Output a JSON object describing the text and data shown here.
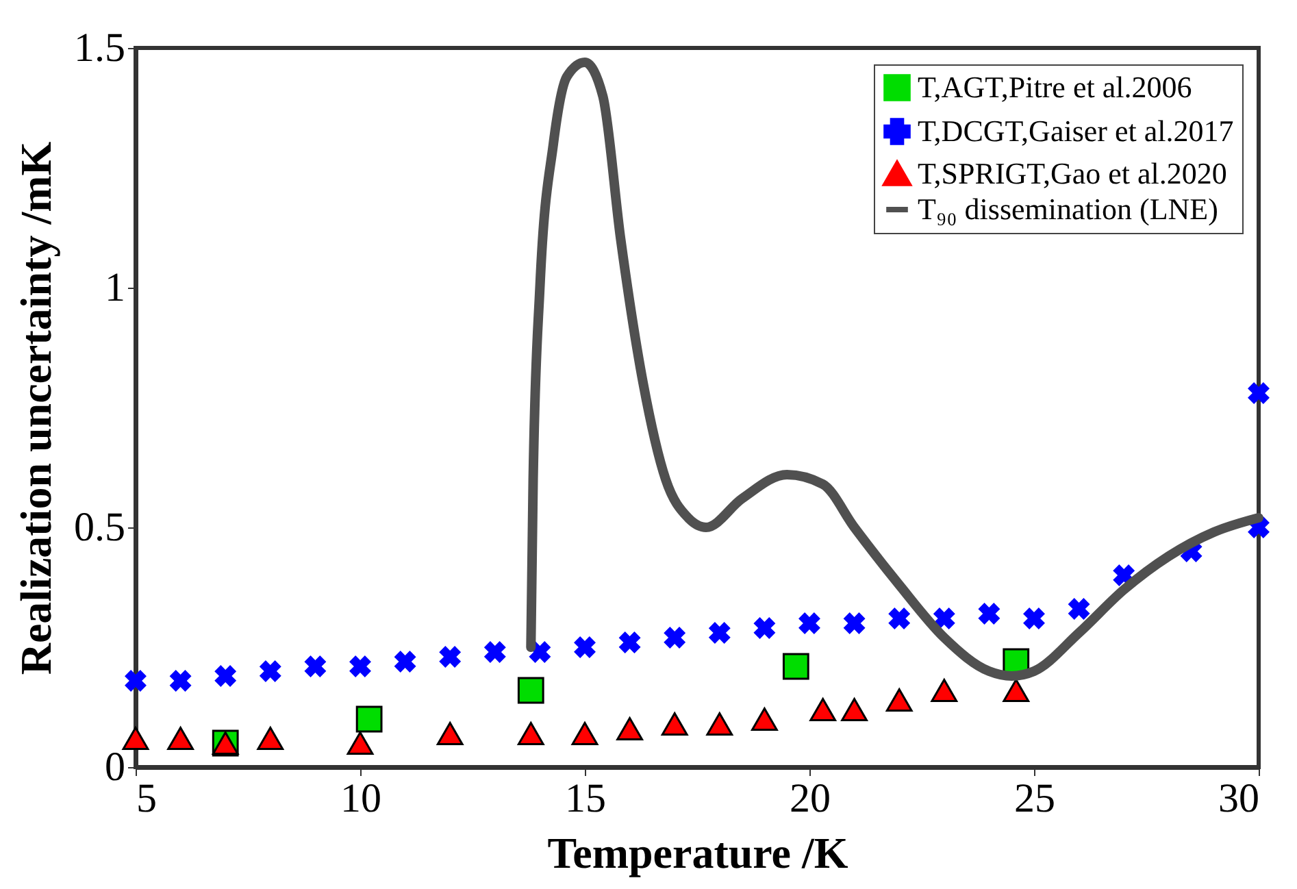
{
  "chart_data": {
    "type": "scatter",
    "xlabel": "Temperature /K",
    "ylabel": "Realization uncertainty /mK",
    "xlim": [
      5,
      30
    ],
    "ylim": [
      0,
      1.5
    ],
    "xticks": [
      5,
      10,
      15,
      20,
      25,
      30
    ],
    "yticks": [
      0,
      0.5,
      1,
      1.5
    ],
    "grid": false,
    "legend": "top right",
    "series": [
      {
        "name": "T,AGT,Pitre et al.2006",
        "marker": "square",
        "color": "#00dd00",
        "x": [
          7,
          10.2,
          13.8,
          19.7,
          24.6
        ],
        "values": [
          0.05,
          0.1,
          0.16,
          0.21,
          0.22
        ]
      },
      {
        "name": "T,DCGT,Gaiser et al.2017",
        "marker": "cross",
        "color": "#0000ff",
        "x": [
          5,
          6,
          7,
          8,
          9,
          10,
          11,
          12,
          13,
          14,
          15,
          16,
          17,
          18,
          19,
          20,
          21,
          22,
          23,
          24,
          25,
          26,
          27,
          28.5,
          30,
          30
        ],
        "values": [
          0.18,
          0.18,
          0.19,
          0.2,
          0.21,
          0.21,
          0.22,
          0.23,
          0.24,
          0.24,
          0.25,
          0.26,
          0.27,
          0.28,
          0.29,
          0.3,
          0.3,
          0.31,
          0.31,
          0.32,
          0.31,
          0.33,
          0.4,
          0.45,
          0.5,
          0.78
        ]
      },
      {
        "name": "T,SPRIGT,Gao et al.2020",
        "marker": "triangle",
        "color": "#ff0000",
        "x": [
          5,
          6,
          7,
          8,
          10,
          12,
          13.8,
          15,
          16,
          17,
          18,
          19,
          20.3,
          21,
          22,
          23,
          24.6
        ],
        "values": [
          0.06,
          0.06,
          0.05,
          0.06,
          0.05,
          0.07,
          0.07,
          0.07,
          0.08,
          0.09,
          0.09,
          0.1,
          0.12,
          0.12,
          0.14,
          0.16,
          0.16
        ]
      },
      {
        "name": "T₉₀ dissemination (LNE)",
        "type": "line",
        "marker": "none",
        "line_style": "solid",
        "color": "#505050",
        "x": [
          13.8,
          13.85,
          14.0,
          14.3,
          14.6,
          15,
          15.4,
          15.8,
          16.3,
          16.8,
          17.3,
          17.7,
          18.5,
          19.5,
          20.3,
          21,
          22,
          23,
          24,
          24.5,
          25,
          26,
          27,
          28,
          29,
          30
        ],
        "values": [
          0.25,
          0.6,
          1.0,
          1.3,
          1.44,
          1.47,
          1.4,
          1.1,
          0.8,
          0.6,
          0.52,
          0.5,
          0.56,
          0.61,
          0.59,
          0.5,
          0.38,
          0.27,
          0.2,
          0.19,
          0.2,
          0.28,
          0.37,
          0.44,
          0.49,
          0.52
        ]
      }
    ]
  }
}
